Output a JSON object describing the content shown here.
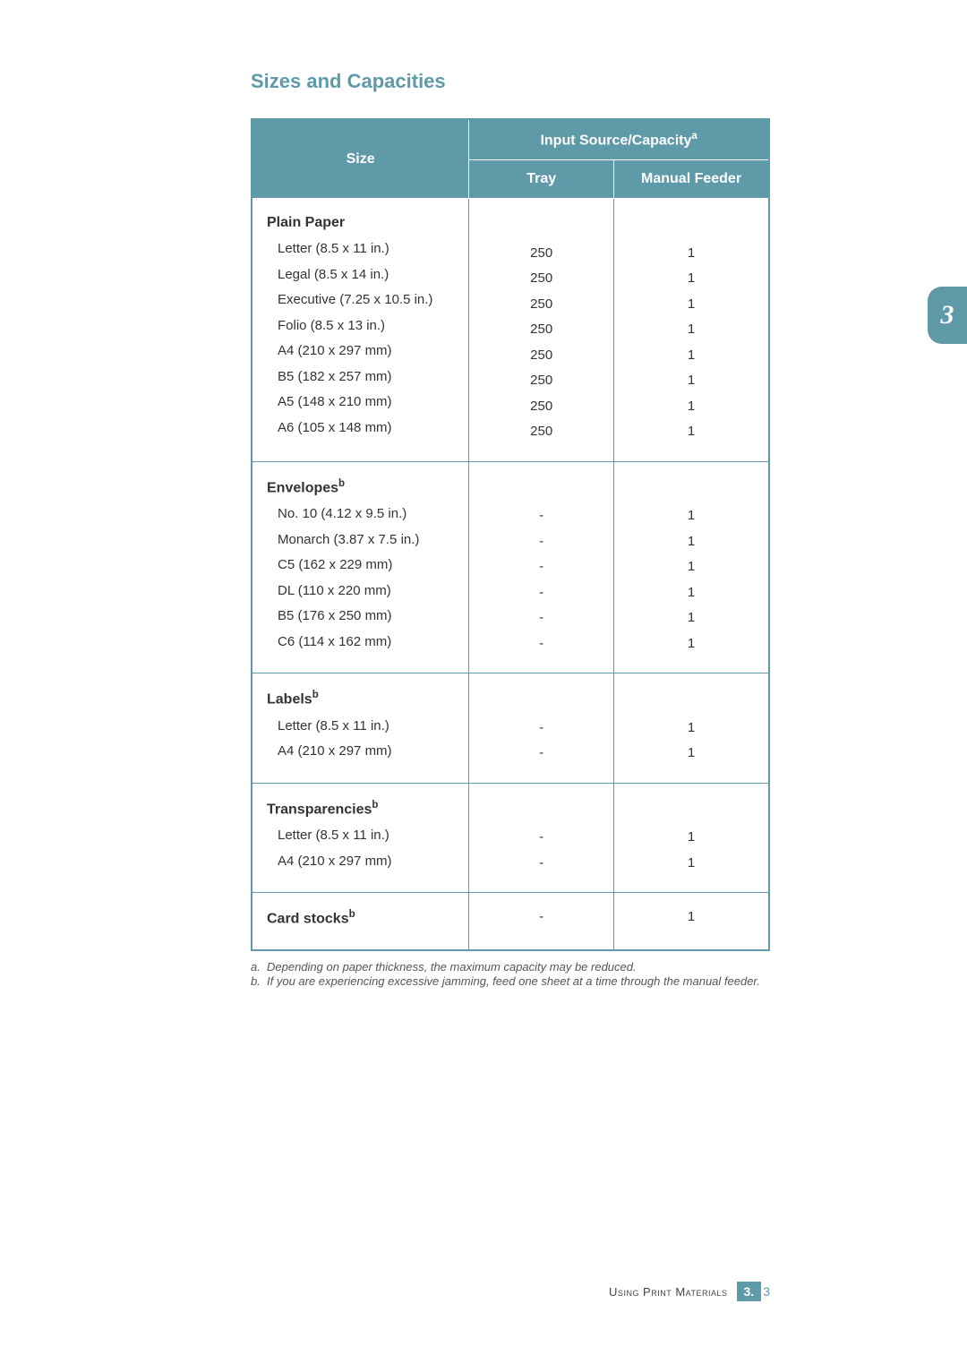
{
  "title": "Sizes and Capacities",
  "table": {
    "headers": {
      "size": "Size",
      "capacity": "Input Source/Capacity",
      "capacity_sup": "a",
      "tray": "Tray",
      "feeder": "Manual Feeder"
    },
    "sections": [
      {
        "category": "Plain Paper",
        "category_sup": "",
        "rows": [
          {
            "size": "Letter (8.5 x 11 in.)",
            "tray": "250",
            "feeder": "1"
          },
          {
            "size": "Legal (8.5 x 14 in.)",
            "tray": "250",
            "feeder": "1"
          },
          {
            "size": "Executive (7.25 x 10.5 in.)",
            "tray": "250",
            "feeder": "1"
          },
          {
            "size": "Folio (8.5 x 13 in.)",
            "tray": "250",
            "feeder": "1"
          },
          {
            "size": "A4 (210 x 297 mm)",
            "tray": "250",
            "feeder": "1"
          },
          {
            "size": "B5 (182 x 257 mm)",
            "tray": "250",
            "feeder": "1"
          },
          {
            "size": "A5 (148 x 210 mm)",
            "tray": "250",
            "feeder": "1"
          },
          {
            "size": "A6 (105 x 148 mm)",
            "tray": "250",
            "feeder": "1"
          }
        ]
      },
      {
        "category": "Envelopes",
        "category_sup": "b",
        "rows": [
          {
            "size": "No. 10 (4.12 x 9.5 in.)",
            "tray": "-",
            "feeder": "1"
          },
          {
            "size": "Monarch (3.87 x 7.5 in.)",
            "tray": "-",
            "feeder": "1"
          },
          {
            "size": "C5 (162 x 229 mm)",
            "tray": "-",
            "feeder": "1"
          },
          {
            "size": "DL (110 x 220 mm)",
            "tray": "-",
            "feeder": "1"
          },
          {
            "size": "B5 (176 x 250 mm)",
            "tray": "-",
            "feeder": "1"
          },
          {
            "size": "C6 (114 x 162 mm)",
            "tray": "-",
            "feeder": "1"
          }
        ]
      },
      {
        "category": "Labels",
        "category_sup": "b",
        "rows": [
          {
            "size": "Letter (8.5 x 11 in.)",
            "tray": "-",
            "feeder": "1"
          },
          {
            "size": "A4 (210 x 297 mm)",
            "tray": "-",
            "feeder": "1"
          }
        ]
      },
      {
        "category": "Transparencies",
        "category_sup": "b",
        "rows": [
          {
            "size": "Letter (8.5 x 11 in.)",
            "tray": "-",
            "feeder": "1"
          },
          {
            "size": "A4 (210 x 297 mm)",
            "tray": "-",
            "feeder": "1"
          }
        ]
      },
      {
        "category": "Card stocks",
        "category_sup": "b",
        "rows": [
          {
            "size": "",
            "tray": "-",
            "feeder": "1"
          }
        ],
        "single_line": true
      }
    ]
  },
  "footnotes": [
    {
      "marker": "a.",
      "text": "Depending on paper thickness, the maximum capacity may be reduced."
    },
    {
      "marker": "b.",
      "text": "If you are experiencing excessive jamming, feed one sheet at a time through the manual feeder."
    }
  ],
  "side_tab": "3",
  "footer": {
    "section": "Using Print Materials",
    "chapter": "3.",
    "page": "3"
  },
  "colors": {
    "accent": "#5e9aa8",
    "text": "#333333",
    "bg": "#ffffff"
  }
}
